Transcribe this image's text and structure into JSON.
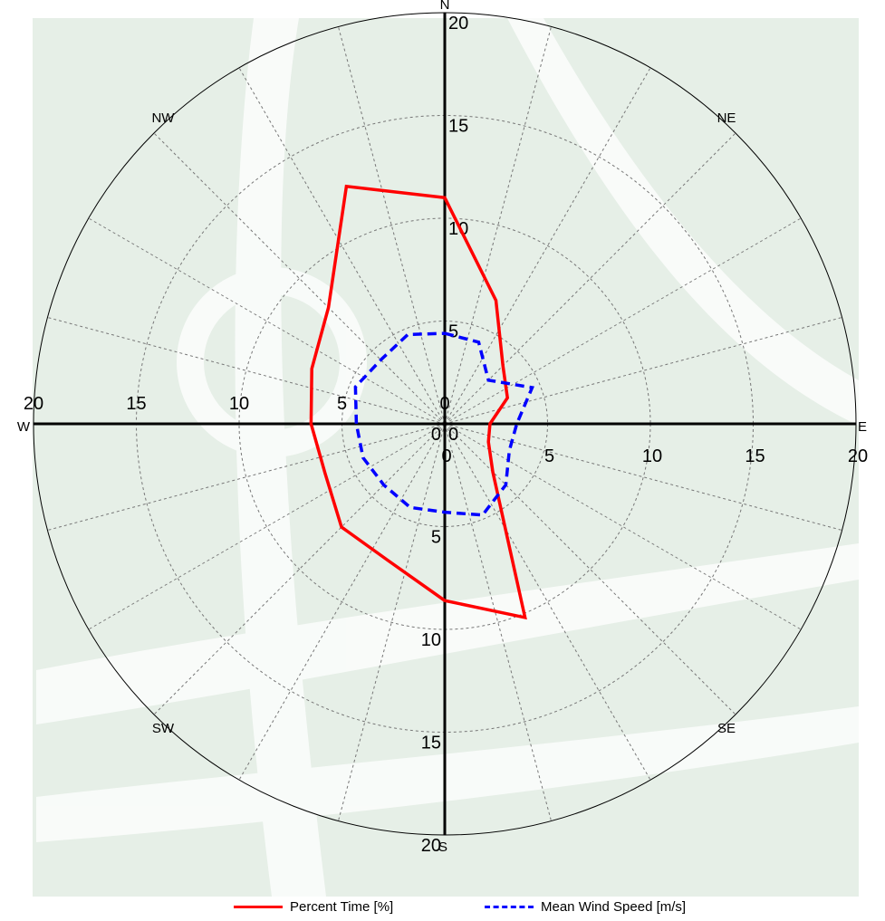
{
  "chart_data": {
    "type": "polar-line (wind rose)",
    "radial_range": [
      0,
      20
    ],
    "radial_ticks": [
      "0",
      "5",
      "10",
      "15",
      "20"
    ],
    "grid": true,
    "directions": [
      {
        "label": "N",
        "angle": 0
      },
      {
        "label": "NE",
        "angle": 45
      },
      {
        "label": "E",
        "angle": 90
      },
      {
        "label": "SE",
        "angle": 135
      },
      {
        "label": "S",
        "angle": 180
      },
      {
        "label": "SW",
        "angle": 225
      },
      {
        "label": "W",
        "angle": 270
      },
      {
        "label": "NW",
        "angle": 315
      }
    ],
    "sector_angles": [
      0,
      22.5,
      45,
      67.5,
      90,
      112.5,
      135,
      157.5,
      180,
      202.5,
      225,
      247.5,
      270,
      292.5,
      315,
      337.5
    ],
    "series": [
      {
        "name": "Percent Time [%]",
        "color": "#ff0000",
        "style": "solid",
        "values": [
          11.0,
          6.5,
          4.0,
          3.3,
          2.2,
          2.3,
          3.3,
          10.2,
          8.6,
          7.2,
          7.1,
          6.3,
          6.5,
          7.0,
          8.0,
          12.5
        ]
      },
      {
        "name": "Mean Wind Speed [m/s]",
        "color": "#0000ff",
        "style": "dashed",
        "values": [
          4.4,
          4.3,
          3.0,
          4.6,
          3.5,
          3.4,
          4.2,
          4.8,
          4.3,
          4.4,
          4.2,
          4.3,
          4.3,
          4.7,
          4.4,
          4.7
        ]
      }
    ],
    "legend_placement": "bottom"
  }
}
